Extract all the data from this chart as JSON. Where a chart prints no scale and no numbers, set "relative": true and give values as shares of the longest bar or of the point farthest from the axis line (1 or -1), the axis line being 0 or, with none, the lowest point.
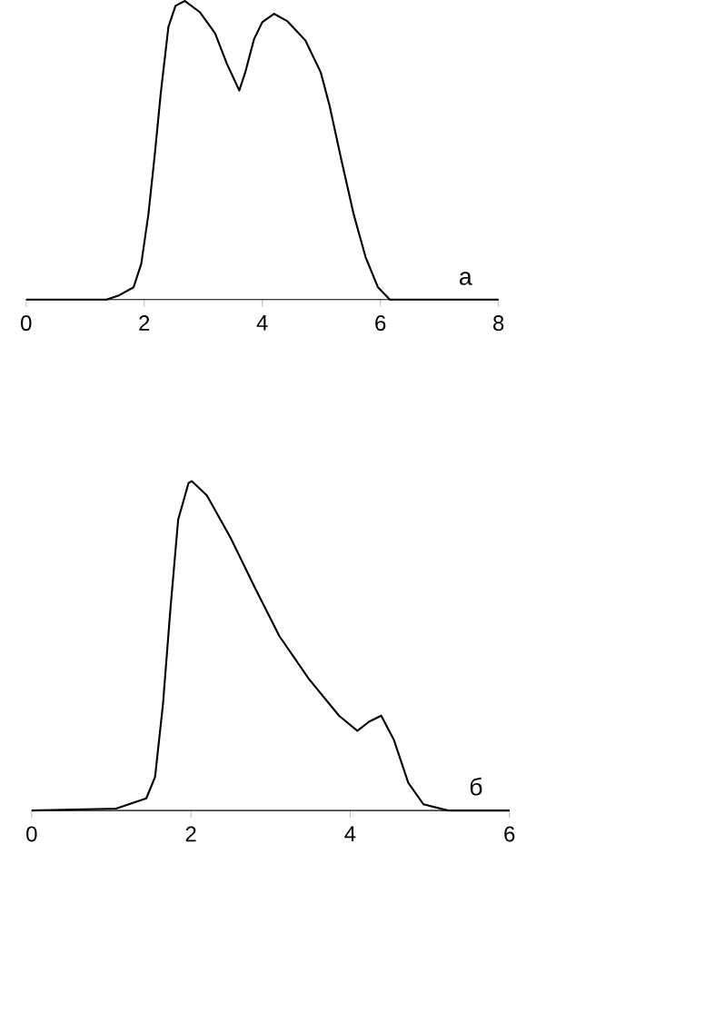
{
  "chart_data": [
    {
      "type": "line",
      "relative": true,
      "xlim": [
        0,
        8
      ],
      "xticks": [
        0,
        2,
        4,
        6,
        8
      ],
      "annotations": [
        "а"
      ],
      "series": [
        {
          "color": "#000000",
          "x": [
            0,
            1.36,
            1.57,
            1.82,
            1.95,
            2.07,
            2.18,
            2.28,
            2.41,
            2.53,
            2.69,
            2.94,
            3.2,
            3.4,
            3.61,
            3.71,
            3.86,
            4.0,
            4.2,
            4.42,
            4.73,
            4.99,
            5.14,
            5.34,
            5.55,
            5.75,
            5.96,
            6.16,
            8
          ],
          "values": [
            0,
            0,
            0.014,
            0.041,
            0.12,
            0.284,
            0.487,
            0.69,
            0.913,
            0.984,
            1,
            0.963,
            0.892,
            0.79,
            0.7,
            0.76,
            0.872,
            0.929,
            0.957,
            0.933,
            0.868,
            0.761,
            0.649,
            0.467,
            0.284,
            0.142,
            0.041,
            0,
            0
          ]
        }
      ]
    },
    {
      "type": "line",
      "relative": true,
      "xlim": [
        0,
        6
      ],
      "xticks": [
        0,
        2,
        4,
        6
      ],
      "annotations": [
        "б"
      ],
      "series": [
        {
          "color": "#000000",
          "x": [
            0,
            1.06,
            1.44,
            1.55,
            1.65,
            1.74,
            1.84,
            1.97,
            2.01,
            2.2,
            2.5,
            2.8,
            3.11,
            3.48,
            3.86,
            4.09,
            4.24,
            4.39,
            4.55,
            4.73,
            4.92,
            5.23,
            6
          ],
          "values": [
            0,
            0.006,
            0.037,
            0.102,
            0.325,
            0.604,
            0.883,
            0.994,
            1,
            0.957,
            0.827,
            0.678,
            0.53,
            0.4,
            0.288,
            0.242,
            0.27,
            0.288,
            0.214,
            0.084,
            0.019,
            0,
            0
          ]
        }
      ]
    }
  ]
}
